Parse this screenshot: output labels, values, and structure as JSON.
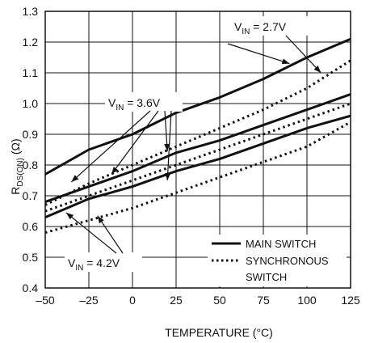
{
  "chart_data": {
    "type": "line",
    "xlabel": "TEMPERATURE (°C)",
    "ylabel": "R",
    "ylabel_sub": "DS(ON)",
    "ylabel_unit": " (Ω)",
    "xlim": [
      -50,
      125
    ],
    "ylim": [
      0.4,
      1.3
    ],
    "xticks": [
      -50,
      -25,
      0,
      25,
      50,
      75,
      100,
      125
    ],
    "xtick_labels": [
      "–50",
      "–25",
      "0",
      "25",
      "50",
      "75",
      "100",
      "125"
    ],
    "yticks": [
      0.4,
      0.5,
      0.6,
      0.7,
      0.8,
      0.9,
      1.0,
      1.1,
      1.2,
      1.3
    ],
    "ytick_labels": [
      "0.4",
      "0.5",
      "0.6",
      "0.7",
      "0.8",
      "0.9",
      "1.0",
      "1.1",
      "1.2",
      "1.3"
    ],
    "grid": true,
    "legend_position": "bottom-right",
    "legend": [
      {
        "label": "MAIN SWITCH",
        "style": "solid"
      },
      {
        "label": "SYNCHRONOUS",
        "label2": "SWITCH",
        "style": "dotted"
      }
    ],
    "series": [
      {
        "vin": "2.7V",
        "style": "solid",
        "x": [
          -50,
          -25,
          0,
          25,
          50,
          75,
          100,
          125
        ],
        "y": [
          0.77,
          0.85,
          0.9,
          0.97,
          1.02,
          1.08,
          1.15,
          1.21
        ]
      },
      {
        "vin": "2.7V",
        "style": "dotted",
        "x": [
          -50,
          -25,
          0,
          25,
          50,
          75,
          100,
          125
        ],
        "y": [
          0.67,
          0.74,
          0.8,
          0.86,
          0.92,
          0.98,
          1.05,
          1.14
        ]
      },
      {
        "vin": "3.6V",
        "style": "solid",
        "x": [
          -50,
          -25,
          0,
          25,
          50,
          75,
          100,
          125
        ],
        "y": [
          0.68,
          0.73,
          0.78,
          0.84,
          0.88,
          0.93,
          0.98,
          1.03
        ]
      },
      {
        "vin": "3.6V",
        "style": "dotted",
        "x": [
          -50,
          -25,
          0,
          25,
          50,
          75,
          100,
          125
        ],
        "y": [
          0.65,
          0.7,
          0.75,
          0.8,
          0.85,
          0.9,
          0.95,
          1.0
        ]
      },
      {
        "vin": "4.2V",
        "style": "solid",
        "x": [
          -50,
          -25,
          0,
          25,
          50,
          75,
          100,
          125
        ],
        "y": [
          0.63,
          0.69,
          0.73,
          0.78,
          0.82,
          0.87,
          0.92,
          0.96
        ]
      },
      {
        "vin": "4.2V",
        "style": "dotted",
        "x": [
          -50,
          -25,
          0,
          25,
          50,
          75,
          100,
          125
        ],
        "y": [
          0.58,
          0.62,
          0.66,
          0.71,
          0.76,
          0.81,
          0.86,
          0.94
        ]
      }
    ],
    "annotations": [
      {
        "prefix": "V",
        "sub": "IN",
        "value": " = 2.7V"
      },
      {
        "prefix": "V",
        "sub": "IN",
        "value": " = 3.6V"
      },
      {
        "prefix": "V",
        "sub": "IN",
        "value": " = 4.2V"
      }
    ]
  }
}
